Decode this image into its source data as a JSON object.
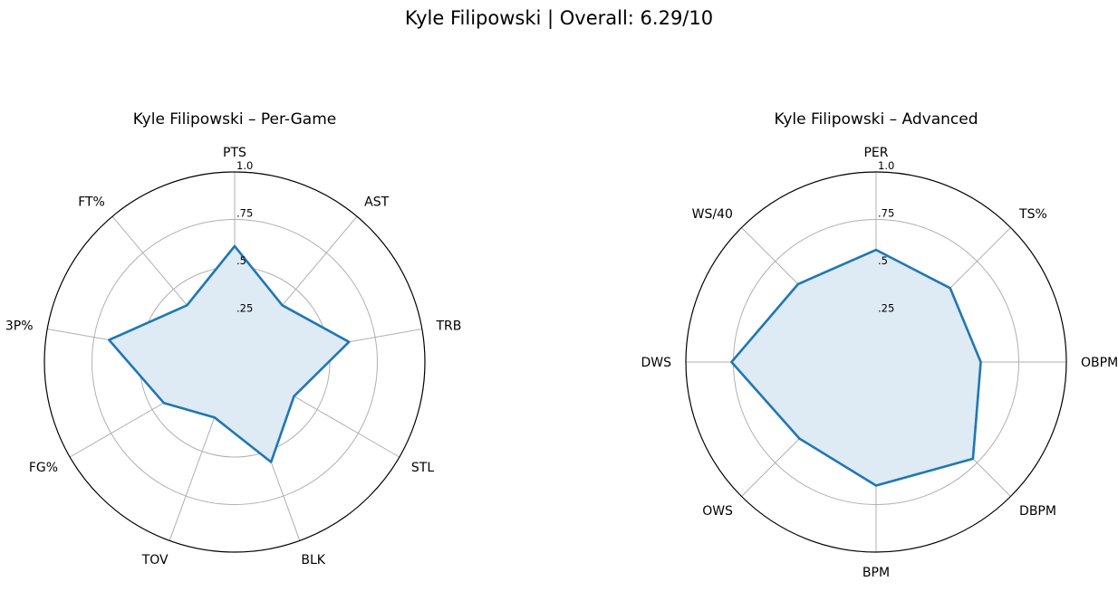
{
  "figure": {
    "title": "Kyle Filipowski | Overall: 6.29/10",
    "series_color": "#1f77b4",
    "fill_color": "#deeaf4"
  },
  "chart_data": [
    {
      "type": "radar",
      "title": "Kyle Filipowski – Per-Game",
      "rlim": [
        0,
        1.0
      ],
      "rticks": [
        {
          "value": 0.25,
          "label": ".25"
        },
        {
          "value": 0.5,
          "label": ".5"
        },
        {
          "value": 0.75,
          "label": ".75"
        },
        {
          "value": 1.0,
          "label": "1.0"
        }
      ],
      "grid": true,
      "categories": [
        "PTS",
        "AST",
        "TRB",
        "STL",
        "BLK",
        "TOV",
        "FG%",
        "3P%",
        "FT%"
      ],
      "values": [
        0.61,
        0.39,
        0.61,
        0.36,
        0.56,
        0.31,
        0.43,
        0.67,
        0.39
      ]
    },
    {
      "type": "radar",
      "title": "Kyle Filipowski – Advanced",
      "rlim": [
        0,
        1.0
      ],
      "rticks": [
        {
          "value": 0.25,
          "label": ".25"
        },
        {
          "value": 0.5,
          "label": ".5"
        },
        {
          "value": 0.75,
          "label": ".75"
        },
        {
          "value": 1.0,
          "label": "1.0"
        }
      ],
      "grid": true,
      "categories": [
        "PER",
        "TS%",
        "OBPM",
        "DBPM",
        "BPM",
        "OWS",
        "DWS",
        "WS/40"
      ],
      "values": [
        0.59,
        0.55,
        0.55,
        0.72,
        0.65,
        0.57,
        0.76,
        0.58
      ]
    }
  ]
}
